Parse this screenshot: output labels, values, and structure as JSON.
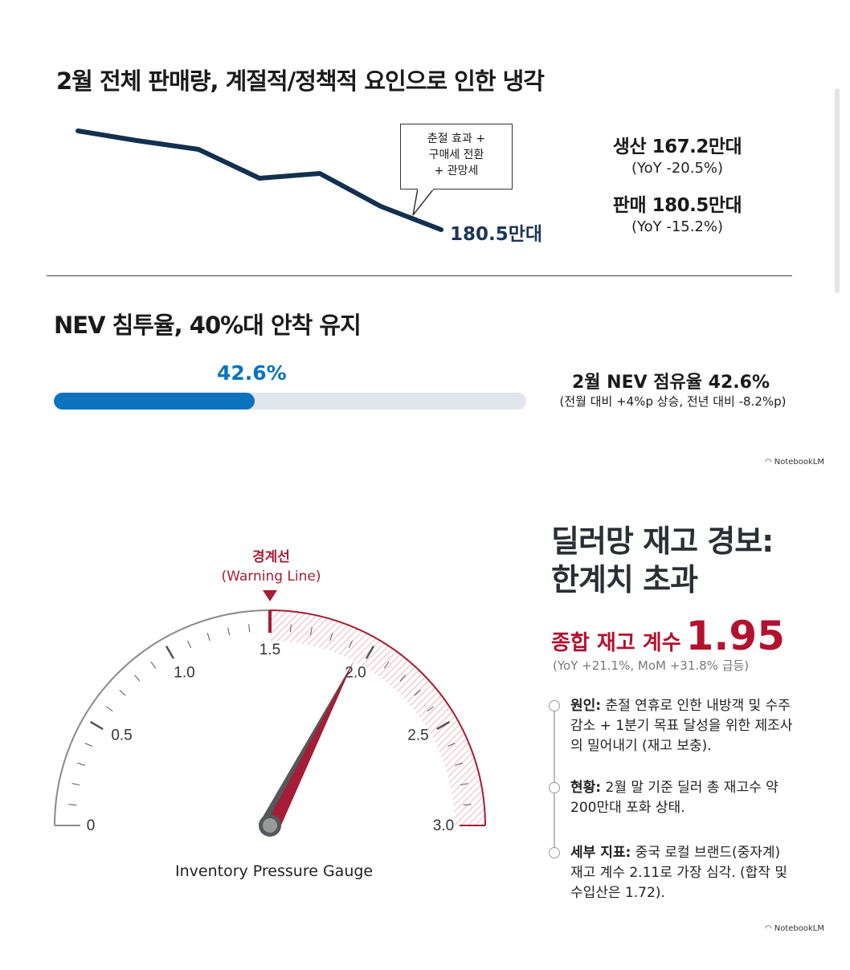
{
  "section1": {
    "title": "2월 전체 판매량, 계절적/정책적 요인으로 인한 냉각",
    "callout_lines": [
      "춘절 효과 +",
      "구매세 전환",
      "+ 관망세"
    ],
    "end_label": "180.5만대",
    "production": {
      "label": "생산 167.2만대",
      "yoy": "(YoY -20.5%)"
    },
    "sales": {
      "label": "판매 180.5만대",
      "yoy": "(YoY -15.2%)"
    },
    "line_color": "#13304f"
  },
  "section2": {
    "title": "NEV 침투율, 40%대 안착 유지",
    "bar_value_label": "42.6%",
    "bar_percent": 42.6,
    "share_label": "2월 NEV 점유율 42.6%",
    "share_detail": "(전월 대비 +4%p 상승, 전년 대비 -8.2%p)",
    "accent": "#0b72bd"
  },
  "logo": "NotebookLM",
  "section3": {
    "warning_label": "경계선",
    "warning_label_en": "(Warning Line)",
    "gauge_ticks": [
      "0",
      "0.5",
      "1.0",
      "1.5",
      "2.0",
      "2.5",
      "3.0"
    ],
    "gauge_min": 0,
    "gauge_max": 3.0,
    "warning_value": 1.5,
    "needle_value": 1.95,
    "gauge_title": "Inventory Pressure Gauge",
    "title_line1": "딜러망 재고 경보:",
    "title_line2": "한계치 초과",
    "coef_label": "종합 재고 계수",
    "coef_value": "1.95",
    "coef_change": "(YoY +21.1%, MoM +31.8% 급등)",
    "timeline": [
      {
        "head": "원인:",
        "text": " 춘절 연휴로 인한 내방객 및 수주 감소 + 1분기 목표 달성을 위한 제조사의 밀어내기 (재고 보충)."
      },
      {
        "head": "현황:",
        "text": " 2월 말 기준 딜러 총 재고수 약 200만대 포화 상태."
      },
      {
        "head": "세부 지표:",
        "text": " 중국 로컬 브랜드(중자계) 재고 계수 2.11로 가장 심각. (합작 및 수입산은 1.72)."
      }
    ],
    "alert_color": "#a51d36"
  }
}
